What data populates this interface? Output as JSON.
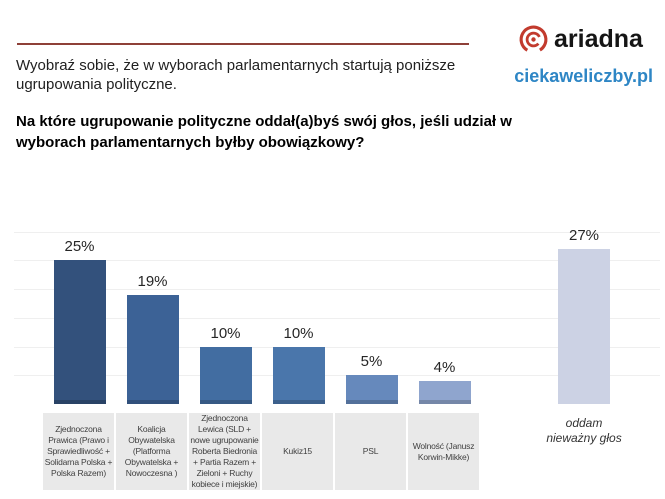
{
  "header": {
    "intro_line1": "Wyobraź sobie, że w wyborach parlamentarnych startują poniższe",
    "intro_line2": "ugrupowania polityczne.",
    "question_line1": "Na które ugrupowanie polityczne oddał(a)byś swój głos, jeśli udział w",
    "question_line2": "wyborach parlamentarnych byłby obowiązkowy?",
    "divider_color": "#8e4038"
  },
  "branding": {
    "logo_text": "ariadna",
    "logo_icon": "ariadna-spiral-icon",
    "logo_color": "#c23b2e",
    "website": "ciekaweliczby.pl",
    "website_color": "#2e86c5"
  },
  "chart_data": {
    "type": "bar",
    "title": "",
    "xlabel": "",
    "ylabel": "",
    "unit": "%",
    "categories": [
      "Zjednoczona Prawica (Prawo i Sprawiedliwość + Solidarna Polska + Polska Razem)",
      "Koalicja Obywatelska (Platforma Obywatelska + Nowoczesna )",
      "Zjednoczona Lewica (SLD + nowe ugrupowanie Roberta Biedronia + Partia Razem + Zieloni + Ruchy kobiece i miejskie)",
      "Kukiz15",
      "PSL",
      "Wolność (Janusz Korwin-Mikke)",
      "oddam nieważny głos"
    ],
    "values": [
      25,
      19,
      10,
      10,
      5,
      4,
      27
    ],
    "value_labels": [
      "25%",
      "19%",
      "10%",
      "10%",
      "5%",
      "4%",
      "27%"
    ],
    "bar_colors": [
      "#33517c",
      "#3c6296",
      "#426da1",
      "#4a76ab",
      "#6689bc",
      "#8fa5ce",
      "#ccd2e4"
    ],
    "category_box_color": "#e9e9e9",
    "ylim": [
      0,
      30
    ],
    "grid": true,
    "grid_step": 5,
    "legend": null,
    "last_bar_separated": true
  }
}
